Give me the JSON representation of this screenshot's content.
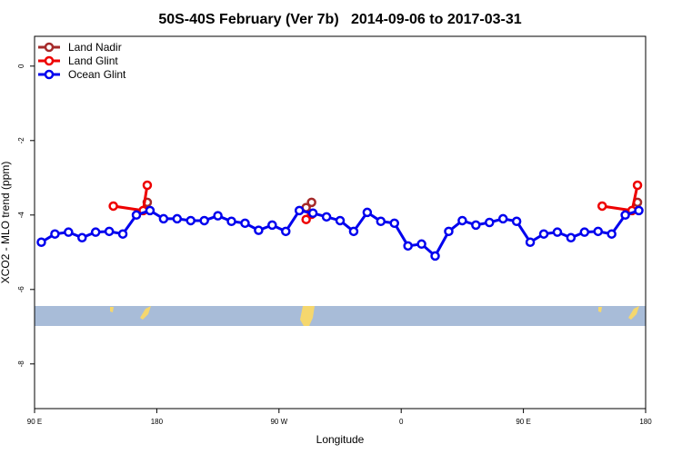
{
  "chart_data": {
    "type": "line",
    "title": "50S-40S February (Ver 7b)   2014-09-06 to 2017-03-31",
    "xlabel": "Longitude",
    "ylabel": "XCO2 - MLO trend (ppm)",
    "xlim": [
      90,
      540
    ],
    "ylim": [
      -9.2,
      0.8
    ],
    "xticks": [
      {
        "value": 90,
        "label": "90 E"
      },
      180,
      {
        "value": 270,
        "label": "90 W"
      },
      {
        "value": 360,
        "label": "0"
      },
      {
        "value": 450,
        "label": "90 E"
      },
      {
        "value": 540,
        "label": "180"
      }
    ],
    "yticks": [
      0,
      -2,
      -4,
      -6,
      -8
    ],
    "legend": "top-left",
    "series": [
      {
        "name": "Land Nadir",
        "color": "#a52a2a",
        "x": [
          173,
          null,
          290,
          294,
          null,
          534
        ],
        "values": [
          -3.66,
          null,
          -3.8,
          -3.66,
          null,
          -3.66
        ]
      },
      {
        "name": "Land Glint",
        "color": "#ee0000",
        "x": [
          148,
          170,
          173,
          null,
          290,
          294,
          null,
          508,
          530,
          534
        ],
        "values": [
          -3.76,
          -3.88,
          -3.2,
          null,
          -4.12,
          -3.98,
          null,
          -3.76,
          -3.88,
          -3.2
        ]
      },
      {
        "name": "Ocean Glint",
        "color": "#0000ee",
        "x": [
          95,
          105,
          115,
          125,
          135,
          145,
          155,
          165,
          175,
          185,
          195,
          205,
          215,
          225,
          235,
          245,
          255,
          265,
          275,
          285,
          295,
          305,
          315,
          325,
          335,
          345,
          355,
          365,
          375,
          385,
          395,
          405,
          415,
          425,
          435,
          445,
          455,
          465,
          475,
          485,
          495,
          505,
          515,
          525,
          535
        ],
        "values": [
          -4.73,
          -4.51,
          -4.46,
          -4.61,
          -4.46,
          -4.44,
          -4.51,
          -4.0,
          -3.88,
          -4.1,
          -4.1,
          -4.15,
          -4.15,
          -4.02,
          -4.17,
          -4.22,
          -4.41,
          -4.27,
          -4.44,
          -3.88,
          -3.95,
          -4.05,
          -4.15,
          -4.44,
          -3.93,
          -4.17,
          -4.22,
          -4.83,
          -4.78,
          -5.1,
          -4.44,
          -4.15,
          -4.27,
          -4.2,
          -4.1,
          -4.17,
          -4.73,
          -4.51,
          -4.46,
          -4.61,
          -4.46,
          -4.44,
          -4.51,
          -4.0,
          -3.88
        ]
      }
    ]
  }
}
